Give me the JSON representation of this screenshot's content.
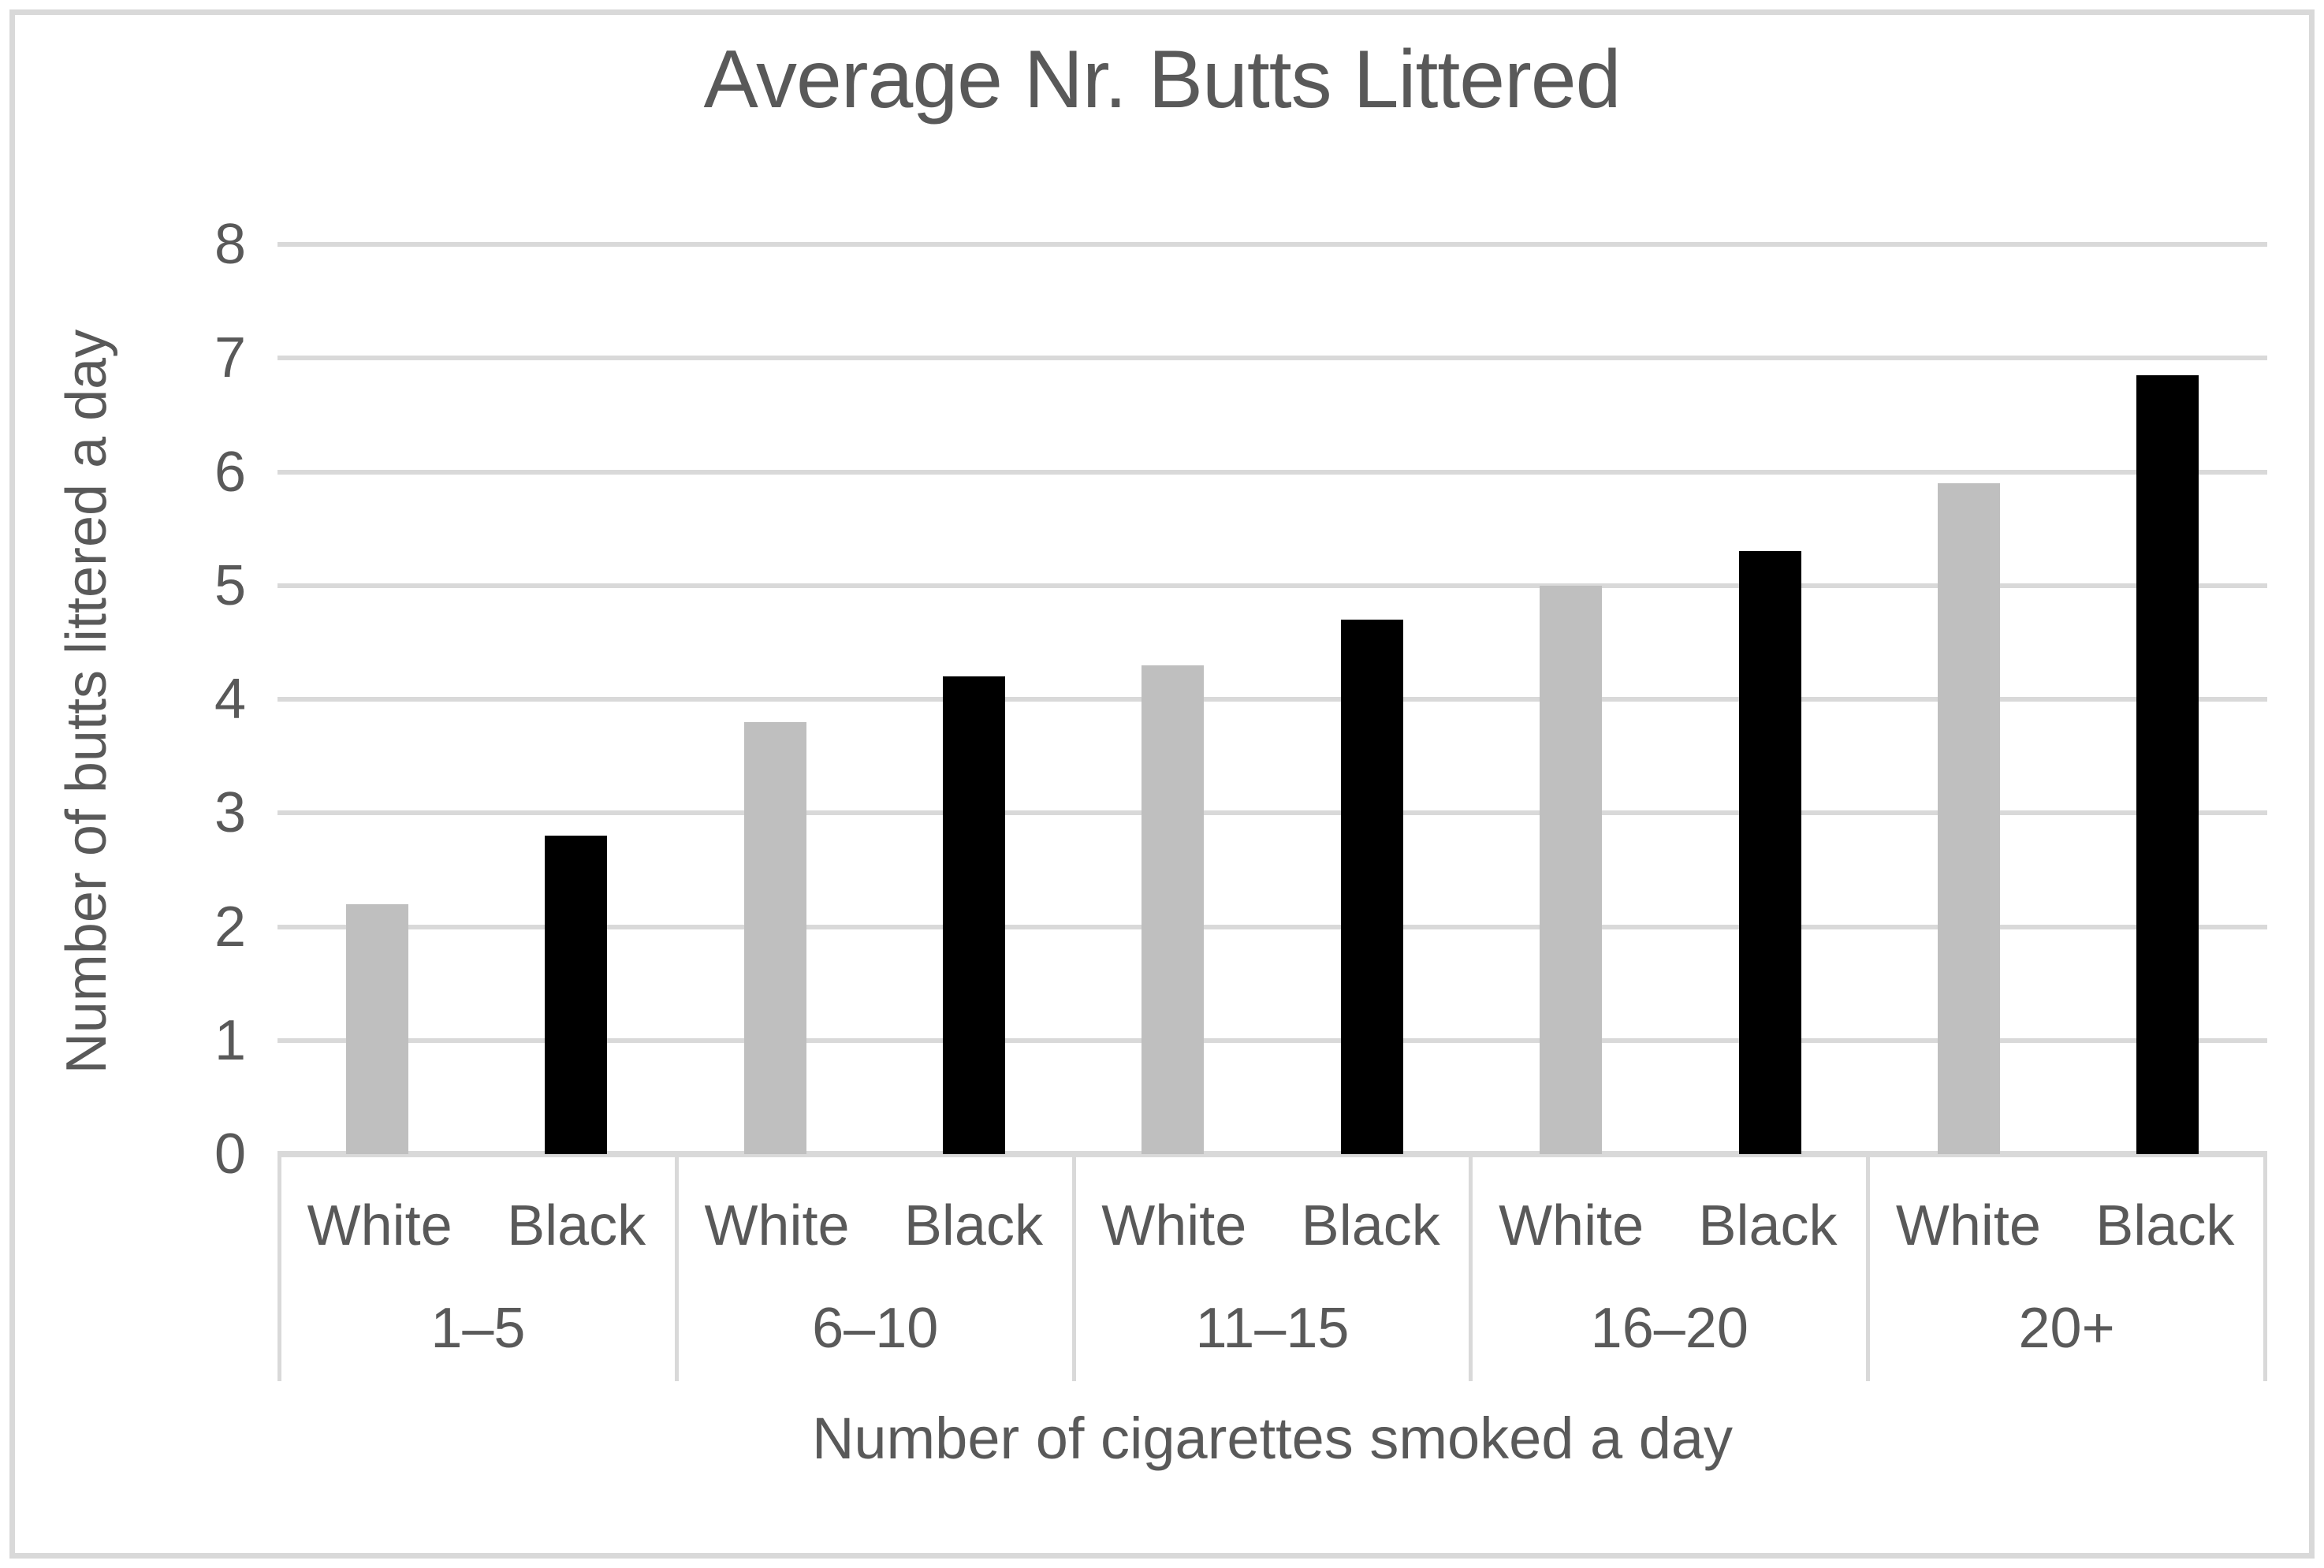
{
  "chart_data": {
    "type": "bar",
    "title": "Average Nr. Butts Littered",
    "xlabel": "Number of cigarettes smoked a day",
    "ylabel": "Number of butts littered a day",
    "ylim": [
      0,
      8
    ],
    "yticks": [
      0,
      1,
      2,
      3,
      4,
      5,
      6,
      7,
      8
    ],
    "grid": true,
    "legend_position": "none",
    "groups": [
      "1–5",
      "6–10",
      "11–15",
      "16–20",
      "20+"
    ],
    "leaf_categories": [
      "White",
      "Black"
    ],
    "series": [
      {
        "name": "White",
        "color": "#bfbfbf",
        "values": [
          2.2,
          3.8,
          4.3,
          5.0,
          5.9
        ]
      },
      {
        "name": "Black",
        "color": "#000000",
        "values": [
          2.8,
          4.2,
          4.7,
          5.3,
          6.85
        ]
      }
    ]
  },
  "colors": {
    "text": "#595959",
    "gridline": "#d9d9d9",
    "baseline": "#d9d9d9",
    "frame_border": "#d9d9d9",
    "background": "#ffffff"
  }
}
